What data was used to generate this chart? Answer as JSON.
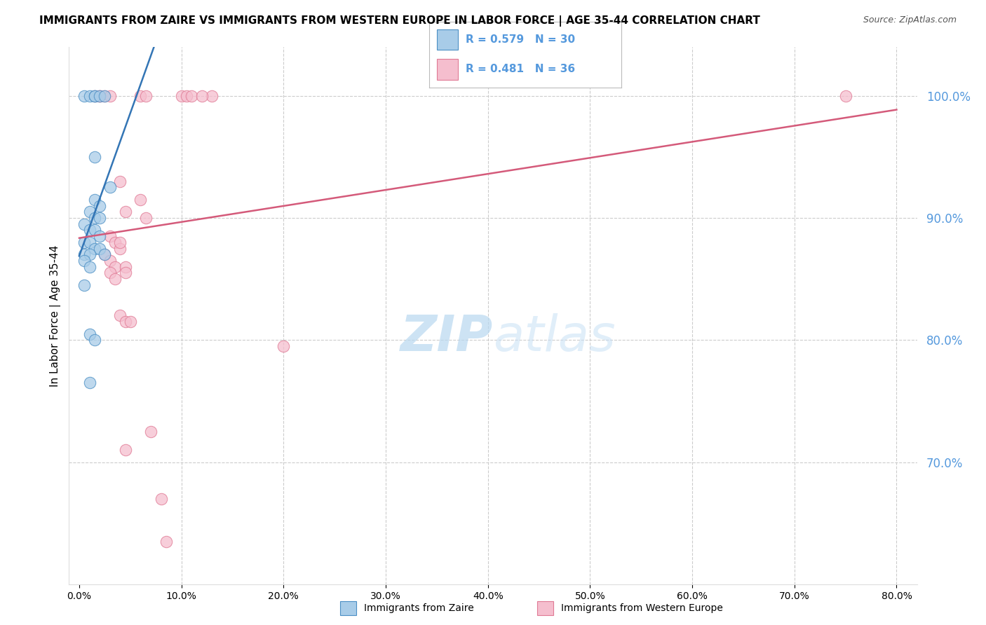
{
  "title": "IMMIGRANTS FROM ZAIRE VS IMMIGRANTS FROM WESTERN EUROPE IN LABOR FORCE | AGE 35-44 CORRELATION CHART",
  "source": "Source: ZipAtlas.com",
  "ylabel": "In Labor Force | Age 35-44",
  "x_tick_values": [
    0,
    10,
    20,
    30,
    40,
    50,
    60,
    70,
    80
  ],
  "y_tick_values": [
    70,
    80,
    90,
    100
  ],
  "xlim": [
    -1,
    82
  ],
  "ylim": [
    60,
    104
  ],
  "legend_blue_r": "R = 0.579",
  "legend_blue_n": "N = 30",
  "legend_pink_r": "R = 0.481",
  "legend_pink_n": "N = 36",
  "blue_color": "#a8cce8",
  "blue_edge_color": "#4b8fc4",
  "blue_line_color": "#3375b5",
  "pink_color": "#f5bece",
  "pink_edge_color": "#e07a95",
  "pink_line_color": "#d45a7a",
  "blue_scatter": [
    [
      0.5,
      100.0
    ],
    [
      1.0,
      100.0
    ],
    [
      1.5,
      100.0
    ],
    [
      1.5,
      100.0
    ],
    [
      2.0,
      100.0
    ],
    [
      2.5,
      100.0
    ],
    [
      1.5,
      95.0
    ],
    [
      3.0,
      92.5
    ],
    [
      1.5,
      91.5
    ],
    [
      2.0,
      91.0
    ],
    [
      1.0,
      90.5
    ],
    [
      1.5,
      90.0
    ],
    [
      2.0,
      90.0
    ],
    [
      0.5,
      89.5
    ],
    [
      1.0,
      89.0
    ],
    [
      1.5,
      89.0
    ],
    [
      2.0,
      88.5
    ],
    [
      0.5,
      88.0
    ],
    [
      1.0,
      88.0
    ],
    [
      1.5,
      87.5
    ],
    [
      2.0,
      87.5
    ],
    [
      2.5,
      87.0
    ],
    [
      0.5,
      87.0
    ],
    [
      1.0,
      87.0
    ],
    [
      0.5,
      86.5
    ],
    [
      1.0,
      86.0
    ],
    [
      0.5,
      84.5
    ],
    [
      1.0,
      80.5
    ],
    [
      1.5,
      80.0
    ],
    [
      1.0,
      76.5
    ]
  ],
  "pink_scatter": [
    [
      1.5,
      100.0
    ],
    [
      2.0,
      100.0
    ],
    [
      2.5,
      100.0
    ],
    [
      6.0,
      100.0
    ],
    [
      6.5,
      100.0
    ],
    [
      10.0,
      100.0
    ],
    [
      10.5,
      100.0
    ],
    [
      11.0,
      100.0
    ],
    [
      13.0,
      100.0
    ],
    [
      75.0,
      100.0
    ],
    [
      4.0,
      93.0
    ],
    [
      6.0,
      91.5
    ],
    [
      4.5,
      90.5
    ],
    [
      6.5,
      90.0
    ],
    [
      3.0,
      88.5
    ],
    [
      3.5,
      88.0
    ],
    [
      4.0,
      87.5
    ],
    [
      4.0,
      88.0
    ],
    [
      2.5,
      87.0
    ],
    [
      3.0,
      86.5
    ],
    [
      3.5,
      86.0
    ],
    [
      4.5,
      86.0
    ],
    [
      3.0,
      85.5
    ],
    [
      3.5,
      85.0
    ],
    [
      4.5,
      85.5
    ],
    [
      4.0,
      82.0
    ],
    [
      4.5,
      81.5
    ],
    [
      5.0,
      81.5
    ],
    [
      20.0,
      79.5
    ],
    [
      4.5,
      71.0
    ],
    [
      7.0,
      72.5
    ],
    [
      8.0,
      67.0
    ],
    [
      8.5,
      63.5
    ],
    [
      2.0,
      100.0
    ],
    [
      3.0,
      100.0
    ],
    [
      12.0,
      100.0
    ]
  ],
  "watermark_zip": "ZIP",
  "watermark_atlas": "atlas",
  "grid_color": "#cccccc",
  "right_axis_color": "#5599dd",
  "background_color": "#ffffff",
  "title_fontsize": 11,
  "source_fontsize": 9,
  "tick_fontsize": 10,
  "ylabel_fontsize": 11
}
